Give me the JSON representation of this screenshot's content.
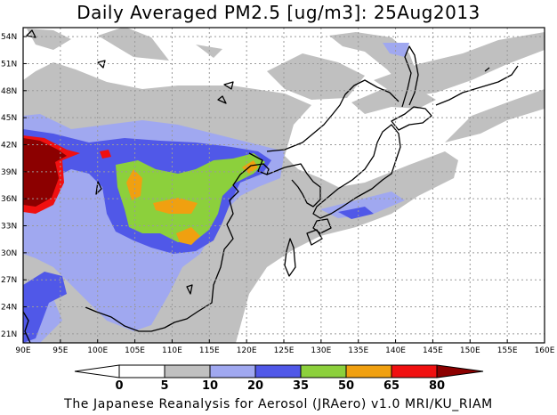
{
  "title": "Daily Averaged PM2.5 [ug/m3]: 25Aug2013",
  "footer": "The Japanese Reanalysis for Aerosol (JRAero) v1.0 MRI/KU_RIAM",
  "map": {
    "lon_range": [
      90,
      160
    ],
    "lat_range": [
      20,
      55
    ],
    "lon_ticks": [
      "90E",
      "95E",
      "100E",
      "105E",
      "110E",
      "115E",
      "120E",
      "125E",
      "130E",
      "135E",
      "140E",
      "145E",
      "150E",
      "155E",
      "160E"
    ],
    "lat_ticks": [
      "21N",
      "24N",
      "27N",
      "30N",
      "33N",
      "36N",
      "39N",
      "42N",
      "45N",
      "48N",
      "51N",
      "54N"
    ],
    "grid": true,
    "colors": {
      "c0_5": "#ffffff",
      "c5_10": "#c0c0c0",
      "c10_20": "#a0a8f0",
      "c20_35": "#5058e8",
      "c35_50": "#8cd03c",
      "c50_65": "#f0a010",
      "c65_80": "#f01010",
      "c80plus": "#8c0000"
    }
  },
  "colorbar": {
    "levels": [
      "0",
      "5",
      "10",
      "20",
      "35",
      "50",
      "65",
      "80"
    ],
    "colors": [
      "#ffffff",
      "#ffffff",
      "#c0c0c0",
      "#a0a8f0",
      "#5058e8",
      "#8cd03c",
      "#f0a010",
      "#f01010",
      "#8c0000"
    ]
  }
}
